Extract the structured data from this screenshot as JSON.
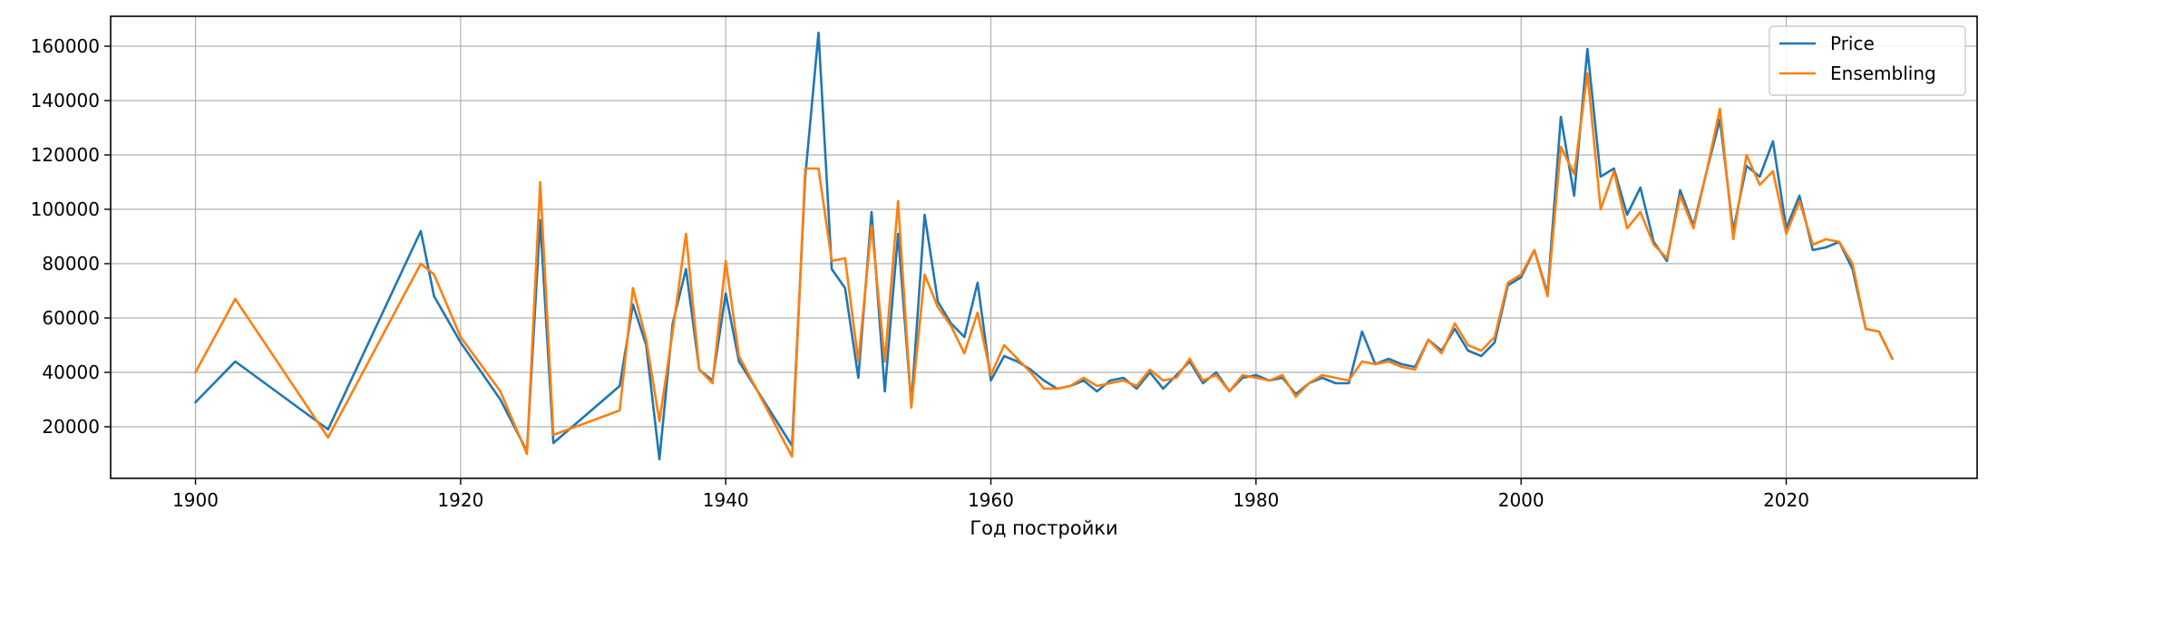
{
  "chart_data": {
    "type": "line",
    "title": "",
    "xlabel": "Год постройки",
    "ylabel": "",
    "xlim": [
      1893.6,
      2034.4
    ],
    "ylim": [
      1000,
      171000
    ],
    "xticks": [
      1900,
      1920,
      1940,
      1960,
      1980,
      2000,
      2020
    ],
    "yticks": [
      20000,
      40000,
      60000,
      80000,
      100000,
      120000,
      140000,
      160000
    ],
    "grid": true,
    "legend_position": "top-right",
    "series": [
      {
        "name": "Price",
        "color": "#1f77b4",
        "x": [
          1900,
          1903,
          1910,
          1917,
          1918,
          1920,
          1923,
          1925,
          1926,
          1927,
          1932,
          1933,
          1934,
          1935,
          1936,
          1937,
          1938,
          1939,
          1940,
          1941,
          1945,
          1946,
          1947,
          1948,
          1949,
          1950,
          1951,
          1952,
          1953,
          1954,
          1955,
          1956,
          1957,
          1958,
          1959,
          1960,
          1961,
          1962,
          1963,
          1964,
          1965,
          1966,
          1967,
          1968,
          1969,
          1970,
          1971,
          1972,
          1973,
          1974,
          1975,
          1976,
          1977,
          1978,
          1979,
          1980,
          1981,
          1982,
          1983,
          1984,
          1985,
          1986,
          1987,
          1988,
          1989,
          1990,
          1991,
          1992,
          1993,
          1994,
          1995,
          1996,
          1997,
          1998,
          1999,
          2000,
          2001,
          2002,
          2003,
          2004,
          2005,
          2006,
          2007,
          2008,
          2009,
          2010,
          2011,
          2012,
          2013,
          2014,
          2015,
          2016,
          2017,
          2018,
          2019,
          2020,
          2021,
          2022,
          2023,
          2024,
          2025,
          2026,
          2027,
          2028
        ],
        "y": [
          29000,
          44000,
          19000,
          92000,
          68000,
          51000,
          30000,
          11000,
          96000,
          14000,
          35000,
          65000,
          50000,
          8000,
          58000,
          78000,
          41000,
          37000,
          69000,
          44000,
          13000,
          112000,
          165000,
          78000,
          71000,
          38000,
          99000,
          33000,
          91000,
          28000,
          98000,
          66000,
          58000,
          53000,
          73000,
          37000,
          46000,
          44000,
          41000,
          37000,
          34000,
          35000,
          37000,
          33000,
          37000,
          38000,
          34000,
          40000,
          34000,
          39000,
          44000,
          36000,
          40000,
          33000,
          38000,
          39000,
          37000,
          38000,
          32000,
          36000,
          38000,
          36000,
          36000,
          55000,
          43000,
          45000,
          43000,
          42000,
          52000,
          48000,
          56000,
          48000,
          46000,
          51000,
          72000,
          75000,
          85000,
          69000,
          134000,
          105000,
          159000,
          112000,
          115000,
          98000,
          108000,
          88000,
          81000,
          107000,
          94000,
          114000,
          133000,
          92000,
          116000,
          112000,
          125000,
          93000,
          105000,
          85000,
          86000,
          88000,
          78000,
          56000,
          55000,
          45000
        ]
      },
      {
        "name": "Ensembling",
        "color": "#ff7f0e",
        "x": [
          1900,
          1903,
          1910,
          1917,
          1918,
          1920,
          1923,
          1925,
          1926,
          1927,
          1932,
          1933,
          1934,
          1935,
          1936,
          1937,
          1938,
          1939,
          1940,
          1941,
          1945,
          1946,
          1947,
          1948,
          1949,
          1950,
          1951,
          1952,
          1953,
          1954,
          1955,
          1956,
          1957,
          1958,
          1959,
          1960,
          1961,
          1962,
          1963,
          1964,
          1965,
          1966,
          1967,
          1968,
          1969,
          1970,
          1971,
          1972,
          1973,
          1974,
          1975,
          1976,
          1977,
          1978,
          1979,
          1980,
          1981,
          1982,
          1983,
          1984,
          1985,
          1986,
          1987,
          1988,
          1989,
          1990,
          1991,
          1992,
          1993,
          1994,
          1995,
          1996,
          1997,
          1998,
          1999,
          2000,
          2001,
          2002,
          2003,
          2004,
          2005,
          2006,
          2007,
          2008,
          2009,
          2010,
          2011,
          2012,
          2013,
          2014,
          2015,
          2016,
          2017,
          2018,
          2019,
          2020,
          2021,
          2022,
          2023,
          2024,
          2025,
          2026,
          2027,
          2028
        ],
        "y": [
          40000,
          67000,
          16000,
          80000,
          76000,
          53000,
          33000,
          10000,
          110000,
          17000,
          26000,
          71000,
          52000,
          22000,
          55000,
          91000,
          41000,
          36000,
          81000,
          46000,
          9000,
          115000,
          115000,
          81000,
          82000,
          44000,
          94000,
          44000,
          103000,
          27000,
          76000,
          64000,
          57000,
          47000,
          62000,
          39000,
          50000,
          45000,
          40000,
          34000,
          34000,
          35000,
          38000,
          35000,
          36000,
          37000,
          35000,
          41000,
          37000,
          38000,
          45000,
          37000,
          39000,
          33000,
          39000,
          38000,
          37000,
          39000,
          31000,
          36000,
          39000,
          38000,
          37000,
          44000,
          43000,
          44000,
          42000,
          41000,
          52000,
          47000,
          58000,
          50000,
          48000,
          53000,
          73000,
          76000,
          85000,
          68000,
          123000,
          113000,
          150000,
          100000,
          114000,
          93000,
          99000,
          87000,
          82000,
          105000,
          93000,
          114000,
          137000,
          89000,
          120000,
          109000,
          114000,
          91000,
          103000,
          87000,
          89000,
          88000,
          80000,
          56000,
          55000,
          45000
        ]
      }
    ]
  }
}
